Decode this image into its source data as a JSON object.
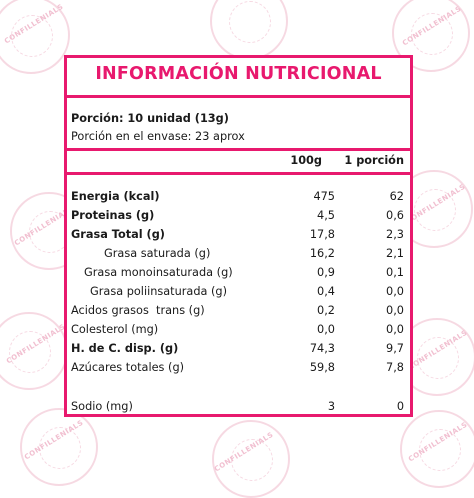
{
  "title": "INFORMACIÓN NUTRICIONAL",
  "portion": "Porción: 10 unidad (13g)",
  "portions_per_pack": "Porción en el envase: 23 aprox",
  "columns": {
    "per100": "100g",
    "perPortion": "1 porción"
  },
  "rows": [
    {
      "label": "Energia (kcal)",
      "v100": "475",
      "vPortion": "62"
    },
    {
      "label": "Proteinas (g)",
      "v100": "4,5",
      "vPortion": "0,6"
    },
    {
      "label": "Grasa Total (g)",
      "v100": "17,8",
      "vPortion": "2,3"
    },
    {
      "label": "Grasa saturada (g)",
      "v100": "16,2",
      "vPortion": "2,1"
    },
    {
      "label": "Grasa monoinsaturada (g)",
      "v100": "0,9",
      "vPortion": "0,1"
    },
    {
      "label": "Grasa poliinsaturada (g)",
      "v100": "0,4",
      "vPortion": "0,0"
    },
    {
      "label": "Acidos grasos  trans (g)",
      "v100": "0,2",
      "vPortion": "0,0"
    },
    {
      "label": "Colesterol (mg)",
      "v100": "0,0",
      "vPortion": "0,0"
    },
    {
      "label": "H. de C. disp. (g)",
      "v100": "74,3",
      "vPortion": "9,7"
    },
    {
      "label": "Azúcares totales (g)",
      "v100": "59,8",
      "vPortion": "7,8"
    },
    {
      "label": "Sodio (mg)",
      "v100": "3",
      "vPortion": "0"
    }
  ],
  "watermark": {
    "brand": "CONFILLENIALS",
    "color": "#f3c9d7"
  },
  "colors": {
    "accent": "#e8196e",
    "text": "#1a1a1a"
  }
}
